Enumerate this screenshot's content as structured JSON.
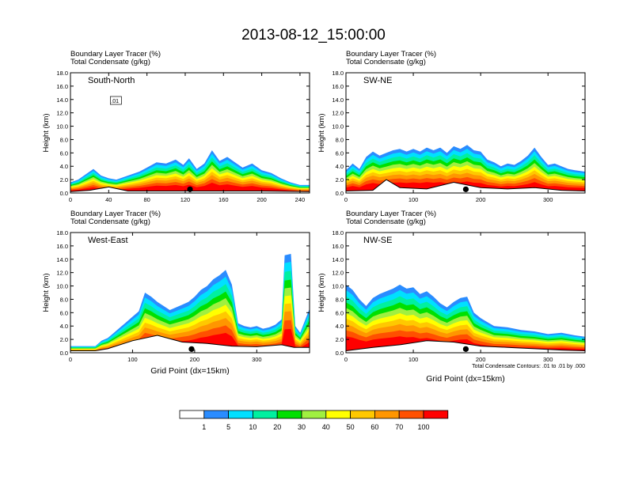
{
  "title": "2013-08-12_15:00:00",
  "chart_data": [
    {
      "type": "heatmap",
      "panel_label": "South-North",
      "subtitle_line1": "Boundary Layer Tracer    (%)",
      "subtitle_line2": "Total Condensate    (g/kg)",
      "ylabel": "Height (km)",
      "xlabel": "",
      "xlim": [
        0,
        250
      ],
      "ylim": [
        0,
        18
      ],
      "xticks": [
        "0",
        "40",
        "80",
        "120",
        "160",
        "200",
        "240"
      ],
      "xtick_values": [
        0,
        40,
        80,
        120,
        160,
        200,
        240
      ],
      "yticks": [
        "0.0",
        "2.0",
        "4.0",
        "6.0",
        "8.0",
        "10.0",
        "12.0",
        "14.0",
        "16.0",
        "18.0"
      ],
      "marker_x": 125,
      "contour_label": ".01",
      "profile": [
        [
          0,
          1.6
        ],
        [
          8,
          2.0
        ],
        [
          16,
          2.8
        ],
        [
          24,
          3.6
        ],
        [
          32,
          2.6
        ],
        [
          40,
          2.2
        ],
        [
          48,
          2.0
        ],
        [
          56,
          2.4
        ],
        [
          64,
          2.8
        ],
        [
          72,
          3.2
        ],
        [
          80,
          3.8
        ],
        [
          90,
          4.6
        ],
        [
          100,
          4.4
        ],
        [
          110,
          5.0
        ],
        [
          118,
          4.2
        ],
        [
          124,
          5.2
        ],
        [
          132,
          3.6
        ],
        [
          140,
          4.4
        ],
        [
          148,
          6.4
        ],
        [
          156,
          4.8
        ],
        [
          164,
          5.4
        ],
        [
          172,
          4.6
        ],
        [
          180,
          3.8
        ],
        [
          190,
          4.4
        ],
        [
          200,
          3.4
        ],
        [
          210,
          3.0
        ],
        [
          220,
          2.2
        ],
        [
          230,
          1.6
        ],
        [
          240,
          1.2
        ],
        [
          250,
          1.2
        ]
      ],
      "terrain": [
        [
          0,
          0.2
        ],
        [
          20,
          0.4
        ],
        [
          40,
          0.9
        ],
        [
          60,
          0.3
        ],
        [
          100,
          0.3
        ],
        [
          140,
          0.3
        ],
        [
          200,
          0.3
        ],
        [
          250,
          0.2
        ]
      ]
    },
    {
      "type": "heatmap",
      "panel_label": "SW-NE",
      "subtitle_line1": "Boundary Layer Tracer    (%)",
      "subtitle_line2": "Total Condensate    (g/kg)",
      "ylabel": "Height (km)",
      "xlabel": "",
      "xlim": [
        0,
        355
      ],
      "ylim": [
        0,
        18
      ],
      "xticks": [
        "0",
        "100",
        "200",
        "300"
      ],
      "xtick_values": [
        0,
        100,
        200,
        300
      ],
      "yticks": [
        "0.0",
        "2.0",
        "4.0",
        "6.0",
        "8.0",
        "10.0",
        "12.0",
        "14.0",
        "16.0",
        "18.0"
      ],
      "marker_x": 178,
      "contour_label": "",
      "profile": [
        [
          0,
          3.4
        ],
        [
          10,
          4.4
        ],
        [
          20,
          3.6
        ],
        [
          30,
          5.4
        ],
        [
          40,
          6.2
        ],
        [
          50,
          5.6
        ],
        [
          60,
          6.0
        ],
        [
          70,
          6.4
        ],
        [
          80,
          6.6
        ],
        [
          90,
          6.2
        ],
        [
          100,
          6.6
        ],
        [
          110,
          6.2
        ],
        [
          120,
          6.8
        ],
        [
          130,
          6.4
        ],
        [
          140,
          6.8
        ],
        [
          150,
          6.0
        ],
        [
          160,
          7.0
        ],
        [
          170,
          6.6
        ],
        [
          180,
          7.2
        ],
        [
          190,
          6.4
        ],
        [
          200,
          6.2
        ],
        [
          210,
          5.0
        ],
        [
          220,
          4.6
        ],
        [
          230,
          4.0
        ],
        [
          240,
          4.4
        ],
        [
          250,
          4.2
        ],
        [
          260,
          4.8
        ],
        [
          270,
          5.6
        ],
        [
          280,
          6.8
        ],
        [
          290,
          5.4
        ],
        [
          300,
          4.2
        ],
        [
          310,
          4.4
        ],
        [
          320,
          4.0
        ],
        [
          330,
          3.6
        ],
        [
          340,
          3.4
        ],
        [
          355,
          3.2
        ]
      ],
      "terrain": [
        [
          0,
          0.3
        ],
        [
          40,
          0.4
        ],
        [
          60,
          2.0
        ],
        [
          80,
          0.8
        ],
        [
          120,
          0.6
        ],
        [
          160,
          1.6
        ],
        [
          200,
          0.8
        ],
        [
          240,
          0.6
        ],
        [
          280,
          0.8
        ],
        [
          320,
          0.4
        ],
        [
          355,
          0.3
        ]
      ]
    },
    {
      "type": "heatmap",
      "panel_label": "West-East",
      "subtitle_line1": "Boundary Layer Tracer    (%)",
      "subtitle_line2": "Total Condensate    (g/kg)",
      "ylabel": "Height (km)",
      "xlabel": "Grid Point (dx=15km)",
      "xlim": [
        0,
        385
      ],
      "ylim": [
        0,
        18
      ],
      "xticks": [
        "0",
        "100",
        "200",
        "300"
      ],
      "xtick_values": [
        0,
        100,
        200,
        300
      ],
      "yticks": [
        "0.0",
        "2.0",
        "4.0",
        "6.0",
        "8.0",
        "10.0",
        "12.0",
        "14.0",
        "16.0",
        "18.0"
      ],
      "marker_x": 195,
      "contour_label": "",
      "profile": [
        [
          0,
          1.0
        ],
        [
          40,
          1.0
        ],
        [
          50,
          1.8
        ],
        [
          60,
          2.2
        ],
        [
          70,
          3.0
        ],
        [
          80,
          3.8
        ],
        [
          90,
          4.6
        ],
        [
          100,
          5.4
        ],
        [
          110,
          6.2
        ],
        [
          120,
          9.0
        ],
        [
          130,
          8.4
        ],
        [
          140,
          7.6
        ],
        [
          150,
          7.0
        ],
        [
          160,
          6.4
        ],
        [
          170,
          6.8
        ],
        [
          180,
          7.2
        ],
        [
          190,
          7.6
        ],
        [
          200,
          8.4
        ],
        [
          210,
          9.4
        ],
        [
          220,
          10.0
        ],
        [
          230,
          11.0
        ],
        [
          240,
          11.6
        ],
        [
          250,
          12.4
        ],
        [
          260,
          10.2
        ],
        [
          270,
          4.4
        ],
        [
          280,
          4.0
        ],
        [
          290,
          3.8
        ],
        [
          300,
          4.0
        ],
        [
          310,
          3.6
        ],
        [
          320,
          3.8
        ],
        [
          330,
          4.2
        ],
        [
          340,
          5.0
        ],
        [
          345,
          14.6
        ],
        [
          355,
          14.8
        ],
        [
          362,
          4.0
        ],
        [
          370,
          3.0
        ],
        [
          385,
          6.6
        ]
      ],
      "terrain": [
        [
          0,
          0.3
        ],
        [
          40,
          0.3
        ],
        [
          60,
          0.6
        ],
        [
          100,
          1.8
        ],
        [
          140,
          2.6
        ],
        [
          180,
          1.6
        ],
        [
          220,
          1.4
        ],
        [
          260,
          1.0
        ],
        [
          300,
          0.9
        ],
        [
          340,
          1.2
        ],
        [
          360,
          0.8
        ],
        [
          385,
          0.8
        ]
      ]
    },
    {
      "type": "heatmap",
      "panel_label": "NW-SE",
      "subtitle_line1": "Boundary Layer Tracer    (%)",
      "subtitle_line2": "Total Condensate    (g/kg)",
      "ylabel": "Height (km)",
      "xlabel": "Grid Point (dx=15km)",
      "xlim": [
        0,
        355
      ],
      "ylim": [
        0,
        18
      ],
      "xticks": [
        "0",
        "100",
        "200",
        "300"
      ],
      "xtick_values": [
        0,
        100,
        200,
        300
      ],
      "yticks": [
        "0.0",
        "2.0",
        "4.0",
        "6.0",
        "8.0",
        "10.0",
        "12.0",
        "14.0",
        "16.0",
        "18.0"
      ],
      "marker_x": 178,
      "contour_label": "",
      "footnote": "Total Condensate Contours: .01 to .01 by .000",
      "profile": [
        [
          0,
          10.2
        ],
        [
          10,
          9.4
        ],
        [
          20,
          8.0
        ],
        [
          30,
          7.0
        ],
        [
          40,
          8.2
        ],
        [
          50,
          8.8
        ],
        [
          60,
          9.2
        ],
        [
          70,
          9.6
        ],
        [
          80,
          10.2
        ],
        [
          90,
          9.6
        ],
        [
          100,
          9.8
        ],
        [
          110,
          8.8
        ],
        [
          120,
          9.2
        ],
        [
          130,
          8.4
        ],
        [
          140,
          7.4
        ],
        [
          150,
          6.8
        ],
        [
          160,
          7.6
        ],
        [
          170,
          8.2
        ],
        [
          180,
          8.4
        ],
        [
          190,
          6.0
        ],
        [
          200,
          5.2
        ],
        [
          210,
          4.6
        ],
        [
          220,
          4.0
        ],
        [
          240,
          3.8
        ],
        [
          260,
          3.4
        ],
        [
          280,
          3.2
        ],
        [
          300,
          2.8
        ],
        [
          320,
          3.0
        ],
        [
          340,
          2.6
        ],
        [
          355,
          2.4
        ]
      ],
      "terrain": [
        [
          0,
          0.3
        ],
        [
          40,
          0.8
        ],
        [
          80,
          1.2
        ],
        [
          120,
          1.8
        ],
        [
          160,
          1.6
        ],
        [
          200,
          1.0
        ],
        [
          240,
          0.8
        ],
        [
          280,
          0.6
        ],
        [
          320,
          0.4
        ],
        [
          355,
          0.3
        ]
      ]
    }
  ],
  "colorbar": {
    "labels": [
      "1",
      "5",
      "10",
      "20",
      "30",
      "40",
      "50",
      "60",
      "70",
      "100"
    ],
    "colors": [
      "#ffffff",
      "#2a8cff",
      "#00e0ff",
      "#00f0a0",
      "#00e000",
      "#a0f040",
      "#ffff00",
      "#ffc800",
      "#ff9600",
      "#ff5000",
      "#ff0000"
    ]
  }
}
